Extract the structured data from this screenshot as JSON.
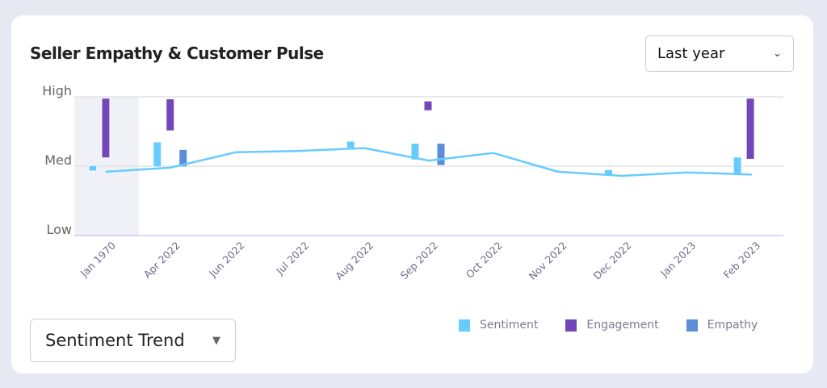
{
  "title": "Seller Empathy & Customer Pulse",
  "range_select": {
    "value": "Last year"
  },
  "trend_select": {
    "value": "Sentiment Trend"
  },
  "colors": {
    "sentiment": "#66ccff",
    "engagement": "#7447b8",
    "empathy": "#5b8dd9",
    "highlight": "#f0f1f7"
  },
  "chart_data": {
    "type": "bar",
    "title": "Seller Empathy & Customer Pulse",
    "y_ticks": [
      "Low",
      "Med",
      "High"
    ],
    "ylim": [
      0,
      2
    ],
    "categories": [
      "Jan 1970",
      "Apr 2022",
      "Jun 2022",
      "Jul 2022",
      "Aug 2022",
      "Sep 2022",
      "Oct 2022",
      "Nov 2022",
      "Dec 2022",
      "Jan 2023",
      "Feb 2023"
    ],
    "highlighted_category": "Jan 1970",
    "legend": {
      "position": "bottom-right",
      "entries": [
        "Sentiment",
        "Engagement",
        "Empathy"
      ]
    },
    "series": [
      {
        "name": "Sentiment",
        "type": "range-bar",
        "values": [
          [
            0.93,
            1.01
          ],
          [
            0.99,
            1.35
          ],
          null,
          null,
          [
            1.26,
            1.36
          ],
          [
            1.09,
            1.33
          ],
          null,
          null,
          [
            0.87,
            0.95
          ],
          null,
          [
            0.88,
            1.13
          ]
        ]
      },
      {
        "name": "Engagement",
        "type": "range-bar",
        "values": [
          [
            1.12,
            1.98
          ],
          [
            1.51,
            1.97
          ],
          null,
          null,
          null,
          [
            1.8,
            1.94
          ],
          null,
          null,
          null,
          null,
          [
            1.1,
            1.98
          ]
        ]
      },
      {
        "name": "Empathy",
        "type": "range-bar",
        "values": [
          null,
          [
            0.99,
            1.24
          ],
          null,
          null,
          null,
          [
            1.01,
            1.33
          ],
          null,
          null,
          null,
          null,
          null
        ]
      },
      {
        "name": "Sentiment Trend",
        "type": "line",
        "values": [
          0.92,
          0.98,
          1.2,
          1.22,
          1.26,
          1.08,
          1.19,
          0.92,
          0.86,
          0.91,
          0.88
        ]
      }
    ]
  }
}
